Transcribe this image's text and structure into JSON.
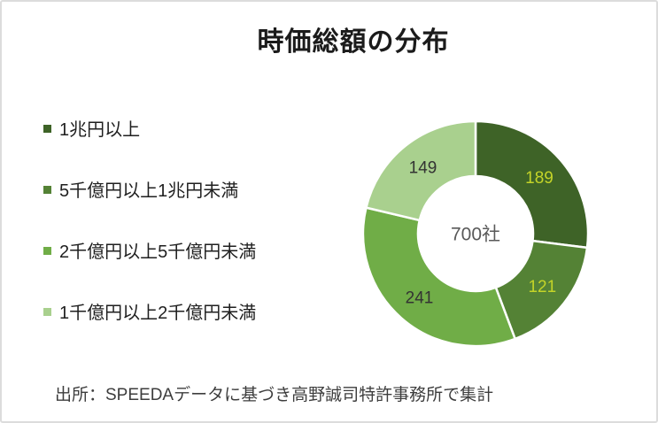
{
  "page": {
    "title": "時価総額の分布",
    "source_note": "出所：SPEEDAデータに基づき高野誠司特許事務所で集計"
  },
  "legend": {
    "position": "left",
    "items": [
      {
        "label": "1兆円以上",
        "color": "#3E6327"
      },
      {
        "label": "5千億円以上1兆円未満",
        "color": "#548235"
      },
      {
        "label": "2千億円以上5千億円未満",
        "color": "#70AD47"
      },
      {
        "label": "1千億円以上2千億円未満",
        "color": "#A9D08E"
      }
    ]
  },
  "chart_data": {
    "type": "pie",
    "subtype": "donut",
    "title": "時価総額の分布",
    "categories": [
      "1兆円以上",
      "5千億円以上1兆円未満",
      "2千億円以上5千億円未満",
      "1千億円以上2千億円未満"
    ],
    "values": [
      189,
      121,
      241,
      149
    ],
    "colors": [
      "#3E6327",
      "#548235",
      "#70AD47",
      "#A9D08E"
    ],
    "value_label_colors": [
      "#C4D428",
      "#C4D428",
      "#333333",
      "#333333"
    ],
    "total": 700,
    "center_label": "700社",
    "start_angle_deg": 0,
    "direction": "clockwise",
    "separator_color": "#ffffff",
    "legend_position": "left",
    "grid": false
  }
}
